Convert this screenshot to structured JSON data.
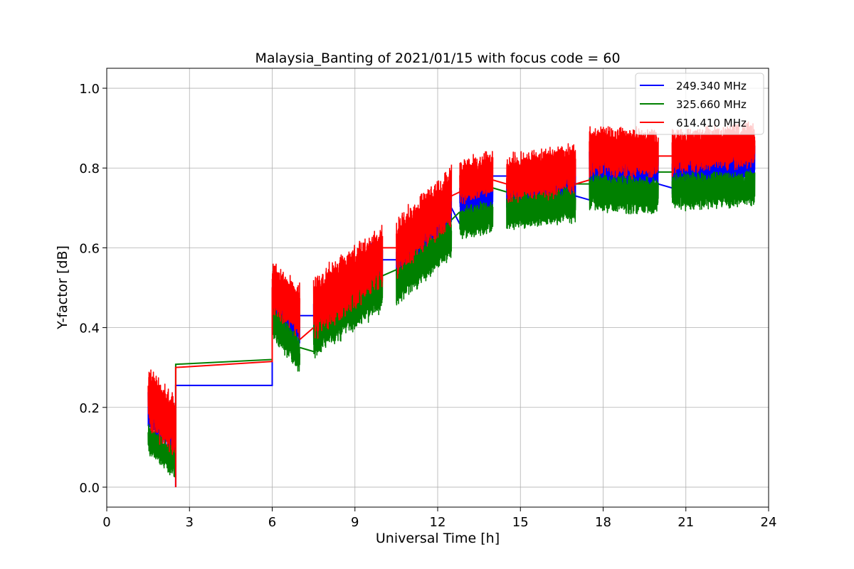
{
  "chart_data": {
    "type": "line",
    "title": "Malaysia_Banting of 2021/01/15 with focus code = 60",
    "xlabel": "Universal Time [h]",
    "ylabel": "Y-factor [dB]",
    "xlim": [
      0,
      24
    ],
    "ylim": [
      -0.05,
      1.05
    ],
    "xticks": [
      0,
      3,
      6,
      9,
      12,
      15,
      18,
      21,
      24
    ],
    "xtick_labels": [
      "0",
      "3",
      "6",
      "9",
      "12",
      "15",
      "18",
      "21",
      "24"
    ],
    "yticks": [
      0.0,
      0.2,
      0.4,
      0.6,
      0.8,
      1.0
    ],
    "ytick_labels": [
      "0.0",
      "0.2",
      "0.4",
      "0.6",
      "0.8",
      "1.0"
    ],
    "grid": true,
    "legend_position": "top-right",
    "series": [
      {
        "name": "249.340 MHz",
        "color": "#0000ff",
        "segments": [
          {
            "x_start": 1.5,
            "x_end": 2.5,
            "center_start": 0.2,
            "center_end": 0.13,
            "spread": 0.1
          },
          {
            "x_start": 6.0,
            "x_end": 7.0,
            "center_start": 0.48,
            "center_end": 0.4,
            "spread": 0.1
          },
          {
            "x_start": 7.5,
            "x_end": 10.0,
            "center_start": 0.42,
            "center_end": 0.56,
            "spread": 0.12
          },
          {
            "x_start": 10.5,
            "x_end": 12.5,
            "center_start": 0.56,
            "center_end": 0.7,
            "spread": 0.11
          },
          {
            "x_start": 12.8,
            "x_end": 14.0,
            "center_start": 0.72,
            "center_end": 0.73,
            "spread": 0.09
          },
          {
            "x_start": 14.5,
            "x_end": 17.0,
            "center_start": 0.74,
            "center_end": 0.77,
            "spread": 0.1
          },
          {
            "x_start": 17.5,
            "x_end": 20.0,
            "center_start": 0.8,
            "center_end": 0.8,
            "spread": 0.1
          },
          {
            "x_start": 20.5,
            "x_end": 23.5,
            "center_start": 0.79,
            "center_end": 0.82,
            "spread": 0.1
          }
        ],
        "bridges": [
          {
            "x": [
              2.5,
              2.5,
              6.0,
              6.0
            ],
            "y": [
              0.0,
              0.255,
              0.255,
              0.5
            ]
          },
          {
            "x": [
              7.0,
              7.5
            ],
            "y": [
              0.43,
              0.43
            ]
          },
          {
            "x": [
              10.0,
              10.5
            ],
            "y": [
              0.57,
              0.57
            ]
          },
          {
            "x": [
              12.5,
              12.8
            ],
            "y": [
              0.7,
              0.66
            ]
          },
          {
            "x": [
              14.0,
              14.5
            ],
            "y": [
              0.78,
              0.78
            ]
          },
          {
            "x": [
              17.0,
              17.5
            ],
            "y": [
              0.73,
              0.72
            ]
          },
          {
            "x": [
              20.0,
              20.5
            ],
            "y": [
              0.76,
              0.75
            ]
          }
        ]
      },
      {
        "name": "325.660 MHz",
        "color": "#008000",
        "segments": [
          {
            "x_start": 1.5,
            "x_end": 2.5,
            "center_start": 0.12,
            "center_end": 0.06,
            "spread": 0.07
          },
          {
            "x_start": 6.0,
            "x_end": 7.0,
            "center_start": 0.42,
            "center_end": 0.33,
            "spread": 0.08
          },
          {
            "x_start": 7.5,
            "x_end": 10.0,
            "center_start": 0.38,
            "center_end": 0.5,
            "spread": 0.1
          },
          {
            "x_start": 10.5,
            "x_end": 12.5,
            "center_start": 0.5,
            "center_end": 0.63,
            "spread": 0.09
          },
          {
            "x_start": 12.8,
            "x_end": 14.0,
            "center_start": 0.66,
            "center_end": 0.68,
            "spread": 0.07
          },
          {
            "x_start": 14.5,
            "x_end": 17.0,
            "center_start": 0.69,
            "center_end": 0.71,
            "spread": 0.08
          },
          {
            "x_start": 17.5,
            "x_end": 20.0,
            "center_start": 0.74,
            "center_end": 0.73,
            "spread": 0.08
          },
          {
            "x_start": 20.5,
            "x_end": 23.5,
            "center_start": 0.74,
            "center_end": 0.75,
            "spread": 0.08
          }
        ],
        "bridges": [
          {
            "x": [
              2.5,
              2.5,
              6.0,
              6.0
            ],
            "y": [
              0.05,
              0.308,
              0.32,
              0.4
            ]
          },
          {
            "x": [
              7.0,
              7.5
            ],
            "y": [
              0.35,
              0.34
            ]
          },
          {
            "x": [
              10.0,
              10.5
            ],
            "y": [
              0.53,
              0.545
            ]
          },
          {
            "x": [
              12.5,
              12.8
            ],
            "y": [
              0.67,
              0.69
            ]
          },
          {
            "x": [
              14.0,
              14.5
            ],
            "y": [
              0.75,
              0.74
            ]
          },
          {
            "x": [
              17.0,
              17.5
            ],
            "y": [
              0.76,
              0.76
            ]
          },
          {
            "x": [
              20.0,
              20.5
            ],
            "y": [
              0.79,
              0.79
            ]
          }
        ]
      },
      {
        "name": "614.410 MHz",
        "color": "#ff0000",
        "segments": [
          {
            "x_start": 1.5,
            "x_end": 2.5,
            "center_start": 0.22,
            "center_end": 0.15,
            "spread": 0.14
          },
          {
            "x_start": 6.0,
            "x_end": 7.0,
            "center_start": 0.5,
            "center_end": 0.44,
            "spread": 0.12
          },
          {
            "x_start": 7.5,
            "x_end": 10.0,
            "center_start": 0.45,
            "center_end": 0.58,
            "spread": 0.14
          },
          {
            "x_start": 10.5,
            "x_end": 12.5,
            "center_start": 0.6,
            "center_end": 0.73,
            "spread": 0.13
          },
          {
            "x_start": 12.8,
            "x_end": 14.0,
            "center_start": 0.76,
            "center_end": 0.79,
            "spread": 0.1
          },
          {
            "x_start": 14.5,
            "x_end": 17.0,
            "center_start": 0.77,
            "center_end": 0.8,
            "spread": 0.11
          },
          {
            "x_start": 17.5,
            "x_end": 20.0,
            "center_start": 0.84,
            "center_end": 0.84,
            "spread": 0.11
          },
          {
            "x_start": 20.5,
            "x_end": 23.5,
            "center_start": 0.84,
            "center_end": 0.86,
            "spread": 0.1
          }
        ],
        "bridges": [
          {
            "x": [
              2.5,
              2.5,
              6.0,
              6.0
            ],
            "y": [
              0.0,
              0.3,
              0.315,
              0.5
            ]
          },
          {
            "x": [
              7.0,
              7.5
            ],
            "y": [
              0.37,
              0.4
            ]
          },
          {
            "x": [
              10.0,
              10.5
            ],
            "y": [
              0.6,
              0.6
            ]
          },
          {
            "x": [
              12.5,
              12.8
            ],
            "y": [
              0.73,
              0.74
            ]
          },
          {
            "x": [
              14.0,
              14.5
            ],
            "y": [
              0.77,
              0.76
            ]
          },
          {
            "x": [
              17.0,
              17.5
            ],
            "y": [
              0.76,
              0.77
            ]
          },
          {
            "x": [
              20.0,
              20.5
            ],
            "y": [
              0.83,
              0.83
            ]
          }
        ]
      }
    ]
  }
}
